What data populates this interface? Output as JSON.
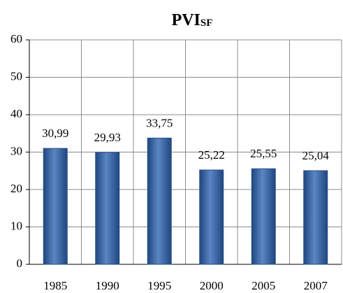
{
  "chart_data": {
    "type": "bar",
    "title": "PVI",
    "title_subscript": "SF",
    "categories": [
      "1985",
      "1990",
      "1995",
      "2000",
      "2005",
      "2007"
    ],
    "values": [
      30.99,
      29.93,
      33.75,
      25.22,
      25.55,
      25.04
    ],
    "value_labels": [
      "30,99",
      "29,93",
      "33,75",
      "25,22",
      "25,55",
      "25,04"
    ],
    "color": "#3a66a8",
    "ylim": [
      0,
      60
    ],
    "yticks": [
      0,
      10,
      20,
      30,
      40,
      50,
      60
    ],
    "grid": true
  }
}
